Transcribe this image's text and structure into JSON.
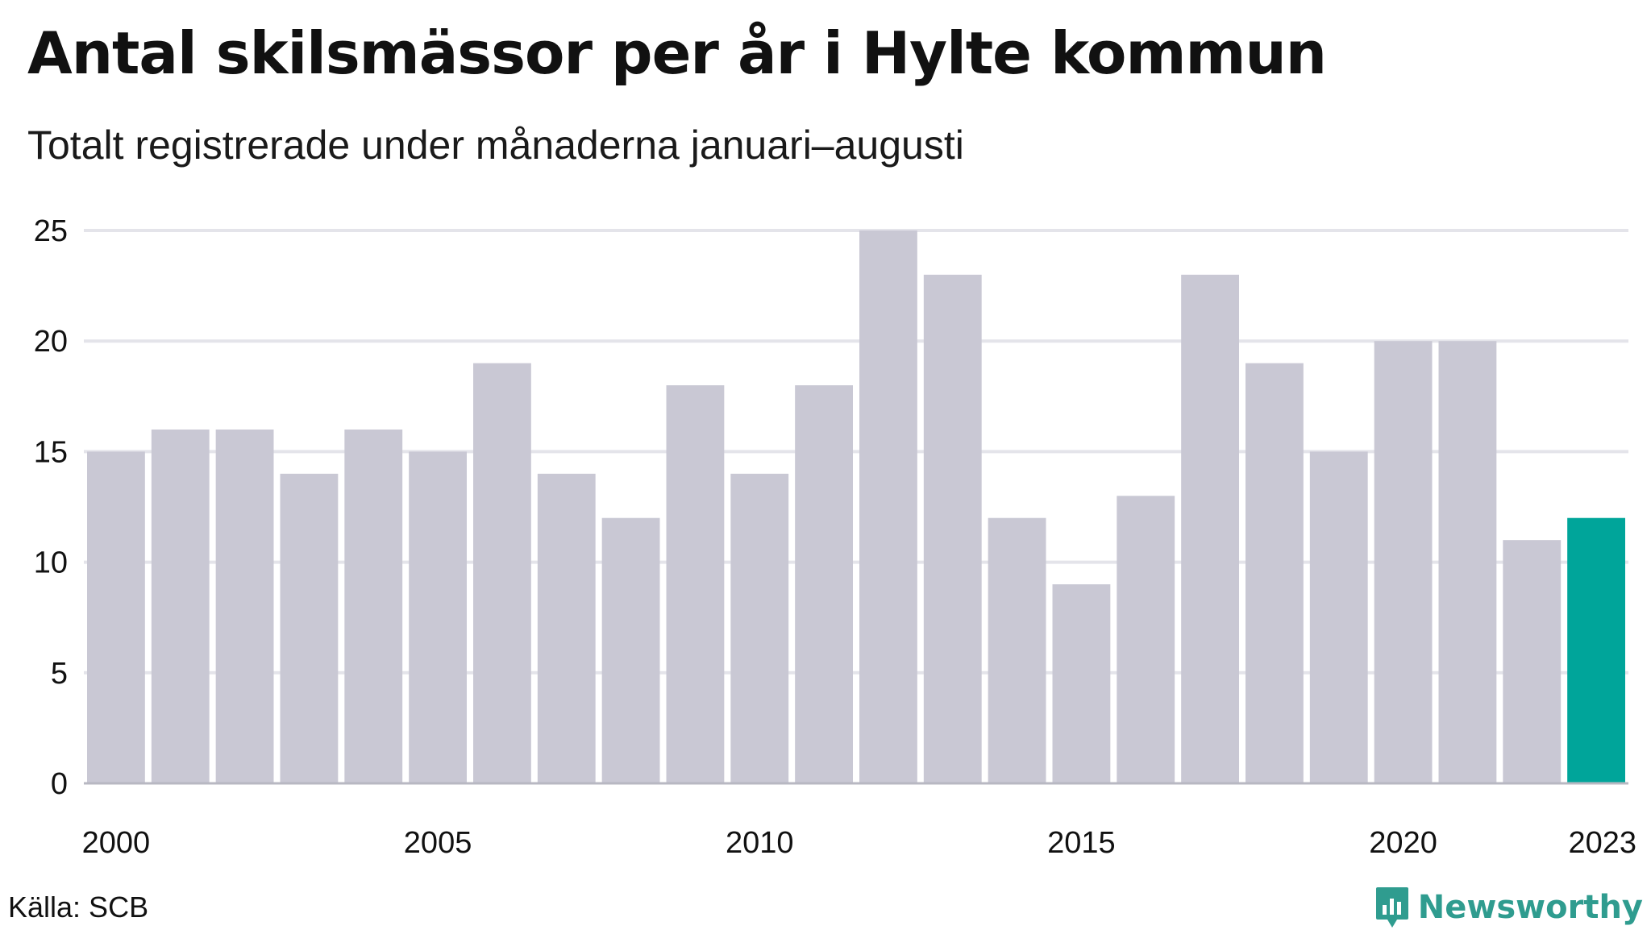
{
  "title": "Antal skilsmässor per år i Hylte kommun",
  "subtitle": "Totalt registrerade under månaderna januari–augusti",
  "source": "Källa: SCB",
  "brand": {
    "name": "Newsworthy",
    "icon": "newsworthy-logo-icon",
    "color": "#2f9c8f"
  },
  "colors": {
    "bar": "#c9c8d4",
    "highlight": "#00a59a",
    "grid": "#e4e4ea"
  },
  "chart_data": {
    "type": "bar",
    "title": "Antal skilsmässor per år i Hylte kommun",
    "subtitle": "Totalt registrerade under månaderna januari–augusti",
    "xlabel": "",
    "ylabel": "",
    "categories": [
      2000,
      2001,
      2002,
      2003,
      2004,
      2005,
      2006,
      2007,
      2008,
      2009,
      2010,
      2011,
      2012,
      2013,
      2014,
      2015,
      2016,
      2017,
      2018,
      2019,
      2020,
      2021,
      2022,
      2023
    ],
    "values": [
      15,
      16,
      16,
      14,
      16,
      15,
      19,
      14,
      12,
      18,
      14,
      18,
      25,
      23,
      12,
      9,
      13,
      23,
      19,
      15,
      20,
      20,
      11,
      12
    ],
    "highlight_category": 2023,
    "ylim": [
      0,
      25
    ],
    "yticks": [
      0,
      5,
      10,
      15,
      20,
      25
    ],
    "xticks": [
      "2000",
      "2005",
      "2010",
      "2015",
      "2020",
      "2023"
    ],
    "grid": true,
    "legend": "none"
  }
}
